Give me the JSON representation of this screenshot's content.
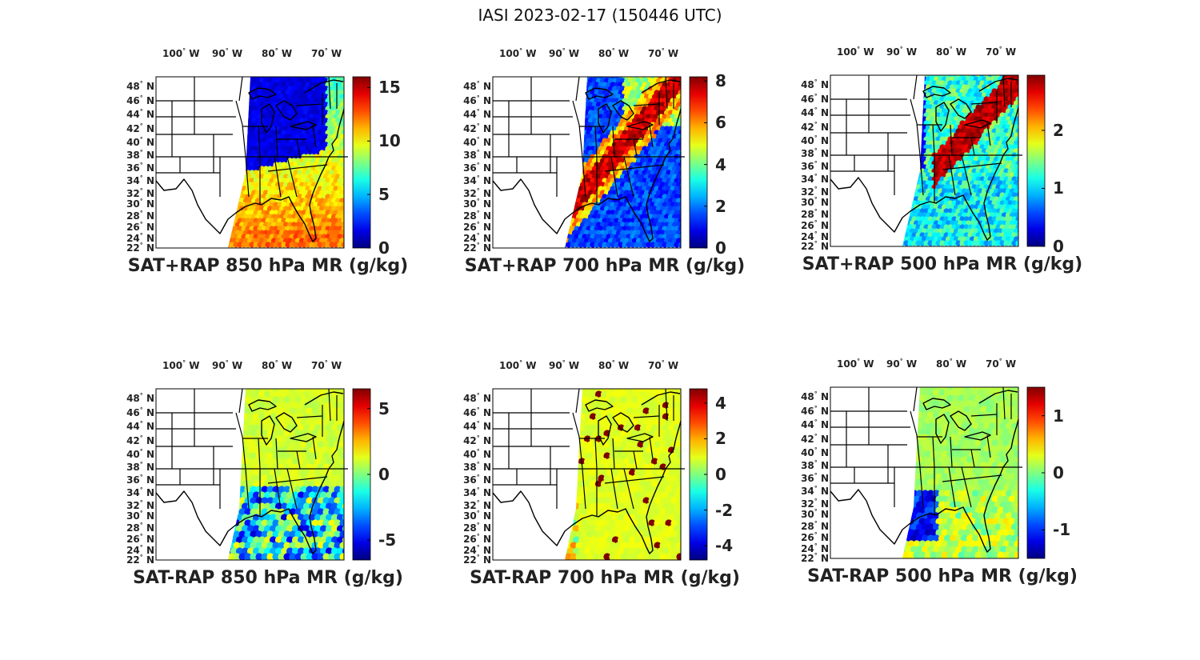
{
  "title": "IASI 2023-02-17 (150446 UTC)",
  "lon_labels": [
    {
      "deg": "100",
      "hemi": "W"
    },
    {
      "deg": "90",
      "hemi": "W"
    },
    {
      "deg": "80",
      "hemi": "W"
    },
    {
      "deg": "70",
      "hemi": "W"
    }
  ],
  "lat_labels": [
    "48",
    "46",
    "44",
    "42",
    "40",
    "38",
    "36",
    "34",
    "32",
    "30",
    "28",
    "26",
    "24",
    "22"
  ],
  "lat_hemi": "N",
  "colormap": "jet",
  "panels": [
    {
      "caption": "SAT+RAP 850 hPa MR (g/kg)",
      "cmin": 0,
      "cmax": 16,
      "ticks": [
        {
          "value": 0,
          "label": "0"
        },
        {
          "value": 5,
          "label": "5"
        },
        {
          "value": 10,
          "label": "10"
        },
        {
          "value": 15,
          "label": "15"
        }
      ]
    },
    {
      "caption": "SAT+RAP 700 hPa MR (g/kg)",
      "cmin": 0,
      "cmax": 8.2,
      "ticks": [
        {
          "value": 0,
          "label": "0"
        },
        {
          "value": 2,
          "label": "2"
        },
        {
          "value": 4,
          "label": "4"
        },
        {
          "value": 6,
          "label": "6"
        },
        {
          "value": 8,
          "label": "8"
        }
      ]
    },
    {
      "caption": "SAT+RAP 500 hPa MR (g/kg)",
      "cmin": 0,
      "cmax": 2.95,
      "ticks": [
        {
          "value": 0,
          "label": "0"
        },
        {
          "value": 1,
          "label": "1"
        },
        {
          "value": 2,
          "label": "2"
        }
      ]
    },
    {
      "caption": "SAT-RAP 850 hPa MR (g/kg)",
      "cmin": -6.5,
      "cmax": 6.5,
      "ticks": [
        {
          "value": -5,
          "label": "-5"
        },
        {
          "value": 0,
          "label": "0"
        },
        {
          "value": 5,
          "label": "5"
        }
      ]
    },
    {
      "caption": "SAT-RAP 700 hPa MR (g/kg)",
      "cmin": -4.8,
      "cmax": 4.8,
      "ticks": [
        {
          "value": -4,
          "label": "-4"
        },
        {
          "value": -2,
          "label": "-2"
        },
        {
          "value": 0,
          "label": "0"
        },
        {
          "value": 2,
          "label": "2"
        },
        {
          "value": 4,
          "label": "4"
        }
      ]
    },
    {
      "caption": "SAT-RAP 500 hPa MR (g/kg)",
      "cmin": -1.5,
      "cmax": 1.5,
      "ticks": [
        {
          "value": -1,
          "label": "-1"
        },
        {
          "value": 0,
          "label": "0"
        },
        {
          "value": 1,
          "label": "1"
        }
      ]
    }
  ]
}
